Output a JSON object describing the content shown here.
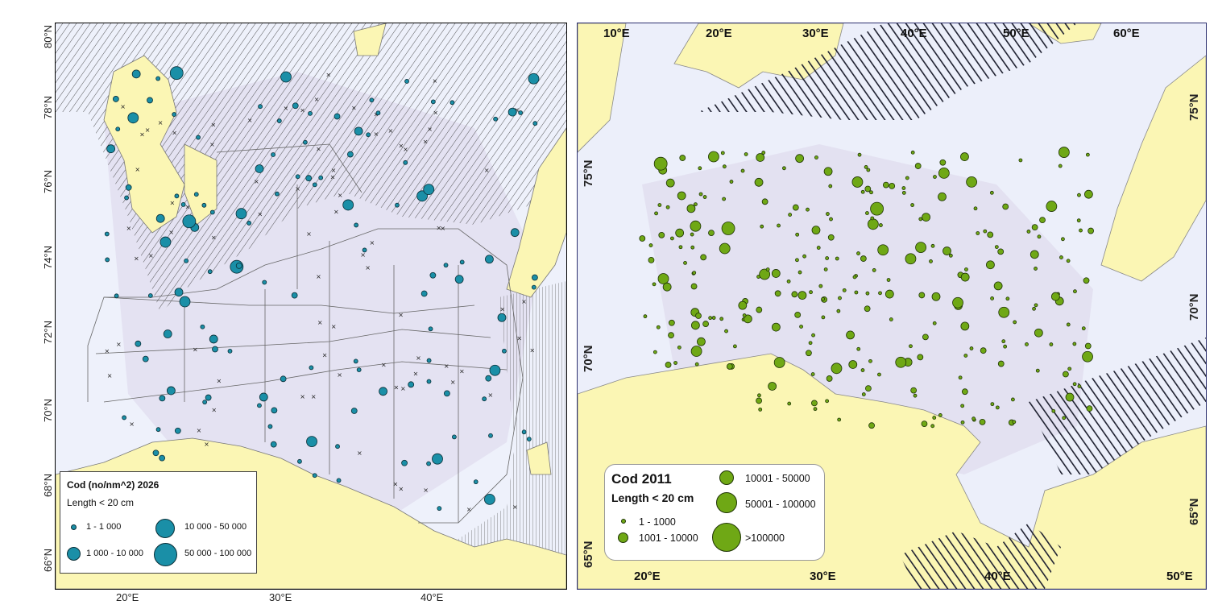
{
  "left_map": {
    "lat_labels": [
      "80°N",
      "78°N",
      "76°N",
      "74°N",
      "72°N",
      "70°N",
      "68°N",
      "66°N"
    ],
    "lon_labels": [
      "20°E",
      "30°E",
      "40°E"
    ],
    "legend": {
      "title": "Cod (no/nm^2) 2026",
      "subtitle": "Length < 20 cm",
      "classes": [
        "1 - 1 000",
        "1 000 - 10 000",
        "10 000 - 50 000",
        "50 000 - 100 000"
      ]
    },
    "colors": {
      "land": "#fbf6b4",
      "sea": "#eef1fb",
      "circle": "#1a8fa7"
    }
  },
  "right_map": {
    "top_lon_labels": [
      "10°E",
      "20°E",
      "30°E",
      "40°E",
      "50°E",
      "60°E"
    ],
    "bottom_lon_labels": [
      "20°E",
      "30°E",
      "40°E",
      "50°E"
    ],
    "left_lat_labels": [
      "75°N",
      "70°N",
      "65°N"
    ],
    "right_lat_labels": [
      "75°N",
      "70°N",
      "65°N"
    ],
    "legend": {
      "title": "Cod 2011",
      "subtitle": "Length < 20 cm",
      "classes": [
        "1 - 1000",
        "1001 - 10000",
        "10001 - 50000",
        "50001 - 100000",
        ">100000"
      ]
    },
    "colors": {
      "land": "#fbf6b4",
      "sea": "#eceffa",
      "circle": "#6fa815"
    }
  }
}
